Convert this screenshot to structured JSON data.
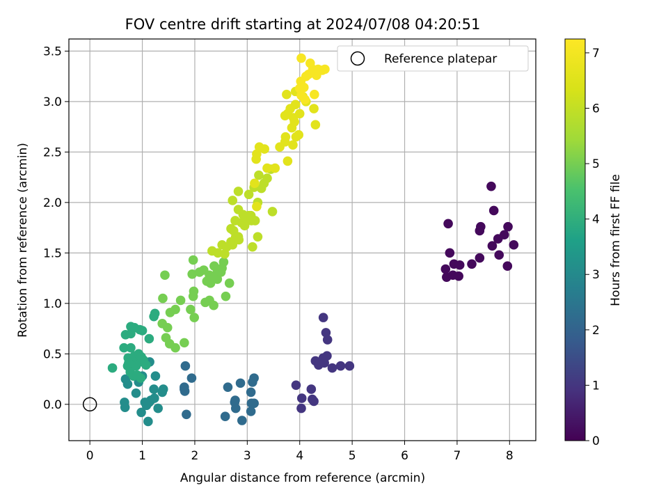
{
  "chart_data": {
    "type": "scatter",
    "title": "FOV centre drift starting at 2024/07/08 04:20:51",
    "xlabel": "Angular distance from reference (arcmin)",
    "ylabel": "Rotation from reference (arcmin)",
    "xlim": [
      -0.4,
      8.5
    ],
    "ylim": [
      -0.36,
      3.62
    ],
    "xticks": [
      0,
      1,
      2,
      3,
      4,
      5,
      6,
      7,
      8
    ],
    "yticks": [
      0.0,
      0.5,
      1.0,
      1.5,
      2.0,
      2.5,
      3.0,
      3.5
    ],
    "grid": true,
    "legend": {
      "position": "top-right",
      "entries": [
        "Reference platepar"
      ]
    },
    "reference_point": {
      "x": 0,
      "y": 0
    },
    "colorbar": {
      "label": "Hours from first FF file",
      "min": 0,
      "max": 7.25,
      "ticks": [
        0,
        1,
        2,
        3,
        4,
        5,
        6,
        7
      ],
      "colormap": "viridis"
    },
    "series": [
      {
        "points": [
          [
            7.65,
            2.16
          ],
          [
            7.7,
            1.92
          ],
          [
            7.45,
            1.76
          ],
          [
            7.43,
            1.72
          ],
          [
            6.83,
            1.79
          ],
          [
            7.97,
            1.76
          ],
          [
            7.78,
            1.64
          ],
          [
            7.9,
            1.68
          ],
          [
            7.67,
            1.57
          ],
          [
            8.08,
            1.58
          ],
          [
            6.86,
            1.5
          ],
          [
            7.43,
            1.45
          ],
          [
            7.8,
            1.48
          ],
          [
            6.94,
            1.39
          ],
          [
            7.05,
            1.38
          ],
          [
            7.28,
            1.39
          ],
          [
            6.78,
            1.34
          ],
          [
            7.96,
            1.37
          ],
          [
            6.8,
            1.26
          ],
          [
            6.92,
            1.28
          ],
          [
            7.03,
            1.27
          ]
        ],
        "hours": 0.15
      },
      {
        "points": [
          [
            4.45,
            0.86
          ],
          [
            4.5,
            0.71
          ],
          [
            4.53,
            0.64
          ],
          [
            4.3,
            0.43
          ],
          [
            4.38,
            0.41
          ],
          [
            4.45,
            0.46
          ],
          [
            4.52,
            0.48
          ],
          [
            4.36,
            0.39
          ],
          [
            4.47,
            0.41
          ],
          [
            4.62,
            0.36
          ],
          [
            4.78,
            0.38
          ],
          [
            4.95,
            0.38
          ],
          [
            3.93,
            0.19
          ],
          [
            4.22,
            0.15
          ],
          [
            4.04,
            0.06
          ],
          [
            4.27,
            0.03
          ],
          [
            4.03,
            -0.04
          ],
          [
            4.24,
            0.05
          ]
        ],
        "hours": 1.0
      },
      {
        "points": [
          [
            3.13,
            0.26
          ],
          [
            3.1,
            0.22
          ],
          [
            2.87,
            0.21
          ],
          [
            2.63,
            0.17
          ],
          [
            3.07,
            0.12
          ],
          [
            2.77,
            0.04
          ],
          [
            2.76,
            0.02
          ],
          [
            3.08,
            0.01
          ],
          [
            3.13,
            0.01
          ],
          [
            2.78,
            -0.04
          ],
          [
            3.07,
            -0.07
          ],
          [
            2.58,
            -0.12
          ],
          [
            2.9,
            -0.16
          ],
          [
            1.82,
            0.38
          ],
          [
            1.94,
            0.26
          ],
          [
            1.8,
            0.15
          ],
          [
            1.8,
            0.17
          ],
          [
            1.81,
            0.13
          ],
          [
            1.84,
            -0.1
          ]
        ],
        "hours": 2.2
      },
      {
        "points": [
          [
            1.4,
            0.15
          ],
          [
            1.38,
            0.12
          ],
          [
            1.22,
            0.15
          ],
          [
            1.25,
            0.28
          ],
          [
            1.14,
            0.42
          ],
          [
            1.23,
            0.06
          ],
          [
            1.16,
            0.04
          ],
          [
            1.13,
            0.02
          ],
          [
            1.05,
            0.02
          ],
          [
            1.08,
            -0.01
          ],
          [
            1.3,
            -0.04
          ],
          [
            0.98,
            -0.08
          ],
          [
            1.11,
            -0.17
          ],
          [
            0.66,
            0.02
          ],
          [
            0.67,
            -0.03
          ],
          [
            0.93,
            0.22
          ],
          [
            0.88,
            0.11
          ],
          [
            1.0,
            0.28
          ],
          [
            0.68,
            0.25
          ],
          [
            0.72,
            0.2
          ]
        ],
        "hours": 3.1
      },
      {
        "points": [
          [
            0.43,
            0.36
          ],
          [
            0.65,
            0.56
          ],
          [
            0.78,
            0.56
          ],
          [
            0.73,
            0.46
          ],
          [
            0.78,
            0.42
          ],
          [
            0.72,
            0.38
          ],
          [
            0.77,
            0.32
          ],
          [
            0.83,
            0.28
          ],
          [
            0.9,
            0.29
          ],
          [
            0.97,
            0.26
          ],
          [
            0.88,
            0.38
          ],
          [
            0.95,
            0.42
          ],
          [
            1.02,
            0.44
          ],
          [
            1.07,
            0.39
          ],
          [
            0.85,
            0.48
          ],
          [
            0.93,
            0.5
          ],
          [
            0.98,
            0.47
          ],
          [
            0.74,
            0.41
          ],
          [
            0.68,
            0.69
          ],
          [
            0.78,
            0.7
          ],
          [
            0.78,
            0.77
          ],
          [
            0.85,
            0.76
          ],
          [
            0.95,
            0.74
          ],
          [
            1.0,
            0.73
          ],
          [
            1.13,
            0.65
          ],
          [
            1.22,
            0.87
          ],
          [
            1.24,
            0.9
          ]
        ],
        "hours": 3.9
      },
      {
        "points": [
          [
            1.43,
            1.28
          ],
          [
            1.39,
            1.05
          ],
          [
            1.38,
            0.8
          ],
          [
            1.48,
            0.76
          ],
          [
            1.45,
            0.66
          ],
          [
            1.52,
            0.6
          ],
          [
            1.63,
            0.56
          ],
          [
            1.8,
            0.61
          ],
          [
            1.53,
            0.91
          ],
          [
            1.63,
            0.94
          ],
          [
            1.73,
            1.03
          ],
          [
            1.92,
            0.94
          ],
          [
            1.99,
            0.86
          ],
          [
            1.97,
            1.07
          ],
          [
            1.98,
            1.12
          ],
          [
            1.95,
            1.29
          ],
          [
            1.97,
            1.43
          ],
          [
            2.09,
            1.31
          ],
          [
            2.2,
            1.01
          ],
          [
            2.28,
            1.03
          ],
          [
            2.17,
            1.33
          ],
          [
            2.23,
            1.22
          ],
          [
            2.3,
            1.2
          ],
          [
            2.28,
            1.28
          ],
          [
            2.37,
            1.25
          ],
          [
            2.36,
            0.98
          ],
          [
            2.43,
            1.24
          ],
          [
            2.43,
            1.31
          ],
          [
            2.37,
            1.37
          ],
          [
            2.5,
            1.31
          ],
          [
            2.52,
            1.35
          ],
          [
            2.55,
            1.41
          ],
          [
            2.59,
            1.07
          ],
          [
            2.66,
            1.2
          ]
        ],
        "hours": 5.0
      },
      {
        "points": [
          [
            2.33,
            1.52
          ],
          [
            2.44,
            1.5
          ],
          [
            2.52,
            1.58
          ],
          [
            2.57,
            1.49
          ],
          [
            2.61,
            1.56
          ],
          [
            2.69,
            1.61
          ],
          [
            2.72,
            1.58
          ],
          [
            2.69,
            1.74
          ],
          [
            2.74,
            1.72
          ],
          [
            2.78,
            1.66
          ],
          [
            2.83,
            1.66
          ],
          [
            2.84,
            1.63
          ],
          [
            2.89,
            1.8
          ],
          [
            2.95,
            1.77
          ],
          [
            2.99,
            1.84
          ],
          [
            3.03,
            1.87
          ],
          [
            3.08,
            1.82
          ],
          [
            3.15,
            1.82
          ],
          [
            3.2,
            1.66
          ],
          [
            3.1,
            1.56
          ],
          [
            2.77,
            1.82
          ],
          [
            2.72,
            2.02
          ],
          [
            2.83,
            2.11
          ],
          [
            2.83,
            1.93
          ],
          [
            2.92,
            1.88
          ],
          [
            3.03,
            2.08
          ],
          [
            3.07,
            1.87
          ],
          [
            3.13,
            2.15
          ],
          [
            3.2,
            2.0
          ],
          [
            3.22,
            2.27
          ],
          [
            3.27,
            2.14
          ],
          [
            3.32,
            2.19
          ],
          [
            3.38,
            2.24
          ],
          [
            3.45,
            2.33
          ],
          [
            3.48,
            1.91
          ]
        ],
        "hours": 5.9
      },
      {
        "points": [
          [
            3.18,
            1.96
          ],
          [
            3.14,
            2.19
          ],
          [
            3.17,
            2.43
          ],
          [
            3.18,
            2.48
          ],
          [
            3.23,
            2.55
          ],
          [
            3.38,
            2.34
          ],
          [
            3.33,
            2.53
          ],
          [
            3.53,
            2.34
          ],
          [
            3.62,
            2.55
          ],
          [
            3.72,
            2.6
          ],
          [
            3.77,
            2.41
          ],
          [
            3.73,
            2.65
          ],
          [
            3.87,
            2.57
          ],
          [
            3.85,
            2.74
          ],
          [
            3.9,
            2.8
          ],
          [
            3.93,
            2.65
          ],
          [
            3.98,
            2.67
          ],
          [
            3.72,
            2.86
          ],
          [
            3.77,
            2.88
          ],
          [
            3.82,
            2.93
          ],
          [
            3.88,
            2.84
          ],
          [
            3.92,
            2.97
          ],
          [
            4.0,
            2.88
          ],
          [
            3.75,
            3.07
          ],
          [
            3.92,
            3.1
          ],
          [
            4.06,
            3.05
          ],
          [
            4.12,
            3.0
          ],
          [
            4.27,
            2.93
          ],
          [
            4.3,
            2.77
          ]
        ],
        "hours": 6.6
      },
      {
        "points": [
          [
            4.03,
            3.43
          ],
          [
            4.12,
            3.25
          ],
          [
            4.17,
            3.27
          ],
          [
            4.2,
            3.38
          ],
          [
            4.3,
            3.28
          ],
          [
            4.35,
            3.32
          ],
          [
            4.43,
            3.31
          ],
          [
            4.48,
            3.32
          ],
          [
            4.02,
            3.2
          ],
          [
            4.0,
            3.13
          ],
          [
            4.08,
            3.14
          ],
          [
            4.03,
            3.06
          ],
          [
            4.1,
            3.02
          ],
          [
            4.28,
            3.07
          ],
          [
            4.32,
            3.26
          ],
          [
            4.25,
            3.32
          ]
        ],
        "hours": 7.1
      }
    ]
  }
}
